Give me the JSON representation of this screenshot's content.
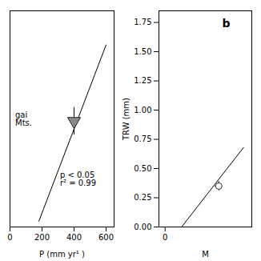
{
  "chart_data": [
    {
      "type": "scatter",
      "x_label": "P (mm yr¹ )",
      "xlim": [
        0,
        650
      ],
      "xticks": [
        0,
        200,
        400,
        600
      ],
      "ylim": [
        -0.05,
        1.85
      ],
      "tick_labels": "x",
      "series": [
        {
          "type": "line",
          "x": [
            180,
            600
          ],
          "values": [
            0.0,
            1.55
          ],
          "color": "black"
        },
        {
          "type": "scatter",
          "x": [
            400
          ],
          "values": [
            0.88
          ],
          "yerr": [
            0.12
          ],
          "marker": "triangle-down",
          "color": "#888888"
        }
      ],
      "annotations": [
        "gai\nMts.",
        "p < 0.05\nr² = 0.99"
      ]
    },
    {
      "type": "scatter",
      "x_label": "M",
      "y_label": "TRW (mm)",
      "xlim": [
        -30,
        420
      ],
      "xticks": [
        0
      ],
      "ylim": [
        0.0,
        1.85
      ],
      "yticks": [
        {
          "value": 0.0,
          "label": "0.00"
        },
        {
          "value": 0.25,
          "label": "0.25"
        },
        {
          "value": 0.5,
          "label": "0.50"
        },
        {
          "value": 0.75,
          "label": "0.75"
        },
        {
          "value": 1.0,
          "label": "1.00"
        },
        {
          "value": 1.25,
          "label": "1.25"
        },
        {
          "value": 1.5,
          "label": "1.50"
        },
        {
          "value": 1.75,
          "label": "1.75"
        }
      ],
      "series": [
        {
          "type": "line",
          "x": [
            80,
            380
          ],
          "values": [
            0.0,
            0.68
          ],
          "color": "black"
        },
        {
          "type": "scatter",
          "x": [
            260
          ],
          "values": [
            0.35
          ],
          "xerr": [
            18
          ],
          "yerr": [
            0.04
          ],
          "marker": "circle",
          "color": "white"
        }
      ],
      "annotations": [
        "b"
      ]
    }
  ]
}
